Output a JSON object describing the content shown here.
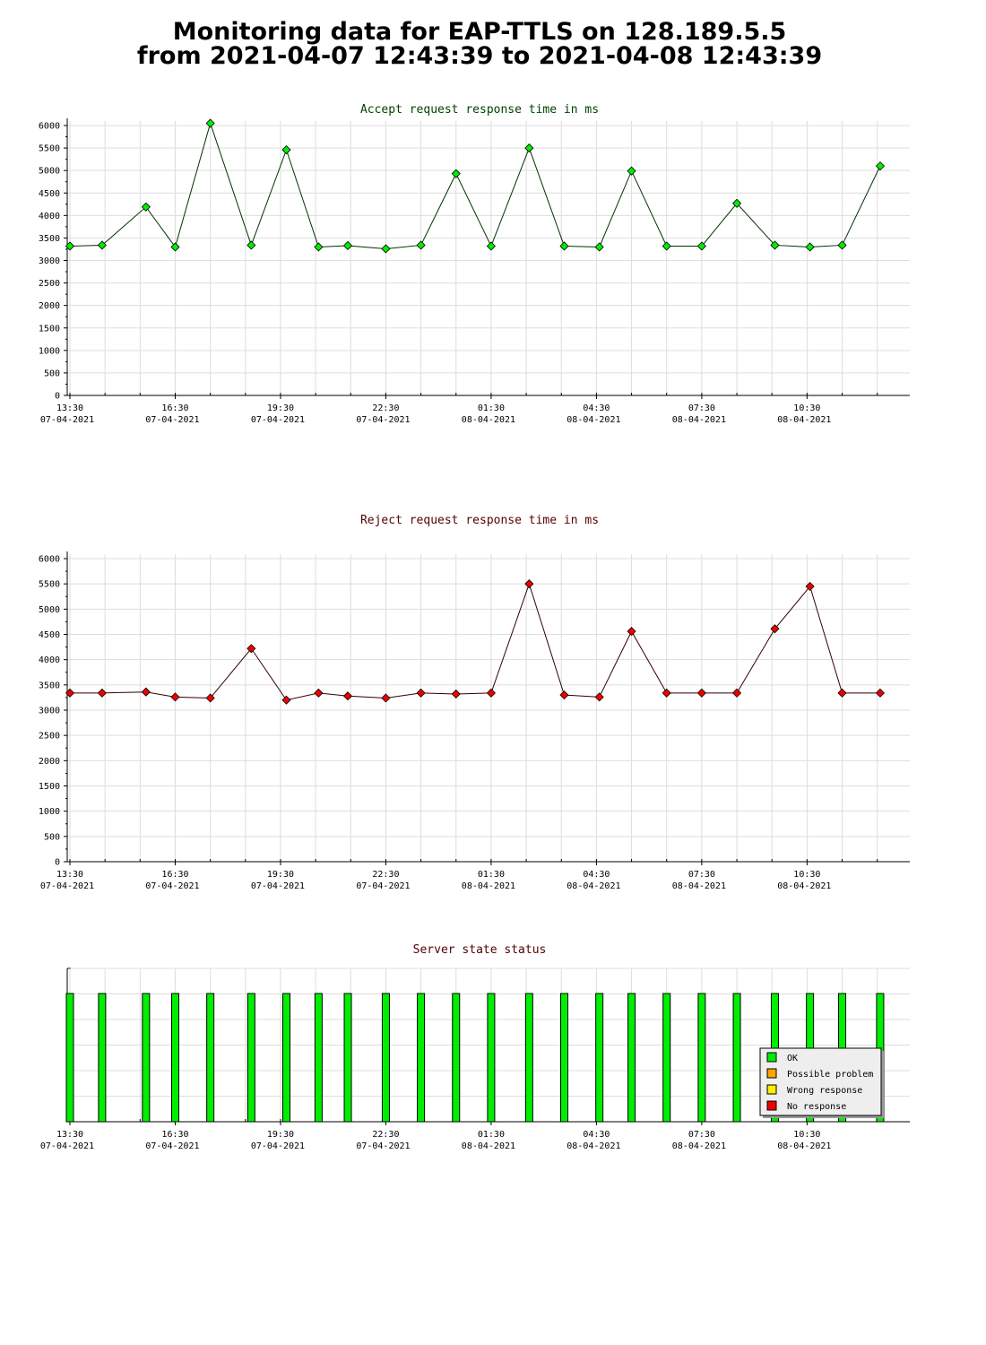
{
  "header": {
    "title_line1": "Monitoring data for EAP-TTLS on 128.189.5.5",
    "title_line2": "from 2021-04-07 12:43:39 to 2021-04-08 12:43:39"
  },
  "colors": {
    "accept_line": "#003300",
    "accept_marker": "#00ee00",
    "reject_line": "#330000",
    "reject_marker": "#ee0000",
    "ok": "#00ee00",
    "possible_problem": "#ffa500",
    "wrong_response": "#ffee00",
    "no_response": "#ee0000",
    "accept_title": "#004400",
    "reject_title": "#550000"
  },
  "x_ticks": [
    {
      "time": "13:30",
      "date": "07-04-2021"
    },
    {
      "time": "16:30",
      "date": "07-04-2021"
    },
    {
      "time": "19:30",
      "date": "07-04-2021"
    },
    {
      "time": "22:30",
      "date": "07-04-2021"
    },
    {
      "time": "01:30",
      "date": "08-04-2021"
    },
    {
      "time": "04:30",
      "date": "08-04-2021"
    },
    {
      "time": "07:30",
      "date": "08-04-2021"
    },
    {
      "time": "10:30",
      "date": "08-04-2021"
    }
  ],
  "chart_data": [
    {
      "type": "line",
      "title": "Accept request response time in ms",
      "x_start": "2021-04-07 13:30",
      "x_end": "2021-04-08 12:55",
      "ylim": [
        0,
        6000
      ],
      "yticks": [
        0,
        500,
        1000,
        1500,
        2000,
        2500,
        3000,
        3500,
        4000,
        4500,
        5000,
        5500,
        6000
      ],
      "grid": true,
      "series": [
        {
          "x": [
            "2021-04-07 13:30",
            "2021-04-07 14:25",
            "2021-04-07 15:40",
            "2021-04-07 16:30",
            "2021-04-07 17:30",
            "2021-04-07 18:40",
            "2021-04-07 19:40",
            "2021-04-07 20:35",
            "2021-04-07 21:25",
            "2021-04-07 22:30",
            "2021-04-07 23:30",
            "2021-04-08 00:30",
            "2021-04-08 01:30",
            "2021-04-08 02:35",
            "2021-04-08 03:35",
            "2021-04-08 04:35",
            "2021-04-08 05:30",
            "2021-04-08 06:30",
            "2021-04-08 07:30",
            "2021-04-08 08:30",
            "2021-04-08 09:35",
            "2021-04-08 10:35",
            "2021-04-08 11:30",
            "2021-04-08 12:35"
          ],
          "values": [
            3320,
            3340,
            4190,
            3300,
            6050,
            3340,
            5460,
            3300,
            3330,
            3260,
            3340,
            4930,
            3320,
            5500,
            3320,
            3300,
            4990,
            3320,
            3320,
            4270,
            3340,
            3300,
            3340,
            5100
          ]
        }
      ]
    },
    {
      "type": "line",
      "title": "Reject request response time in ms",
      "x_start": "2021-04-07 13:30",
      "x_end": "2021-04-08 12:55",
      "ylim": [
        0,
        6000
      ],
      "yticks": [
        0,
        500,
        1000,
        1500,
        2000,
        2500,
        3000,
        3500,
        4000,
        4500,
        5000,
        5500,
        6000
      ],
      "grid": true,
      "series": [
        {
          "x": [
            "2021-04-07 13:30",
            "2021-04-07 14:25",
            "2021-04-07 15:40",
            "2021-04-07 16:30",
            "2021-04-07 17:30",
            "2021-04-07 18:40",
            "2021-04-07 19:40",
            "2021-04-07 20:35",
            "2021-04-07 21:25",
            "2021-04-07 22:30",
            "2021-04-07 23:30",
            "2021-04-08 00:30",
            "2021-04-08 01:30",
            "2021-04-08 02:35",
            "2021-04-08 03:35",
            "2021-04-08 04:35",
            "2021-04-08 05:30",
            "2021-04-08 06:30",
            "2021-04-08 07:30",
            "2021-04-08 08:30",
            "2021-04-08 09:35",
            "2021-04-08 10:35",
            "2021-04-08 11:30",
            "2021-04-08 12:35"
          ],
          "values": [
            3340,
            3340,
            3360,
            3260,
            3240,
            4220,
            3200,
            3340,
            3280,
            3240,
            3340,
            3320,
            3340,
            5500,
            3300,
            3260,
            4560,
            3340,
            3340,
            3340,
            4610,
            5450,
            3340,
            3340
          ]
        }
      ]
    },
    {
      "type": "bar",
      "title": "Server state status",
      "x_start": "2021-04-07 13:30",
      "x_end": "2021-04-08 12:55",
      "x": [
        "2021-04-07 13:30",
        "2021-04-07 14:25",
        "2021-04-07 15:40",
        "2021-04-07 16:30",
        "2021-04-07 17:30",
        "2021-04-07 18:40",
        "2021-04-07 19:40",
        "2021-04-07 20:35",
        "2021-04-07 21:25",
        "2021-04-07 22:30",
        "2021-04-07 23:30",
        "2021-04-08 00:30",
        "2021-04-08 01:30",
        "2021-04-08 02:35",
        "2021-04-08 03:35",
        "2021-04-08 04:35",
        "2021-04-08 05:30",
        "2021-04-08 06:30",
        "2021-04-08 07:30",
        "2021-04-08 08:30",
        "2021-04-08 09:35",
        "2021-04-08 10:35",
        "2021-04-08 11:30",
        "2021-04-08 12:35"
      ],
      "status": [
        "OK",
        "OK",
        "OK",
        "OK",
        "OK",
        "OK",
        "OK",
        "OK",
        "OK",
        "OK",
        "OK",
        "OK",
        "OK",
        "OK",
        "OK",
        "OK",
        "OK",
        "OK",
        "OK",
        "OK",
        "OK",
        "OK",
        "OK",
        "OK"
      ],
      "legend": [
        "OK",
        "Possible problem",
        "Wrong response",
        "No response"
      ],
      "legend_placement": "bottom-right",
      "grid": true
    }
  ]
}
